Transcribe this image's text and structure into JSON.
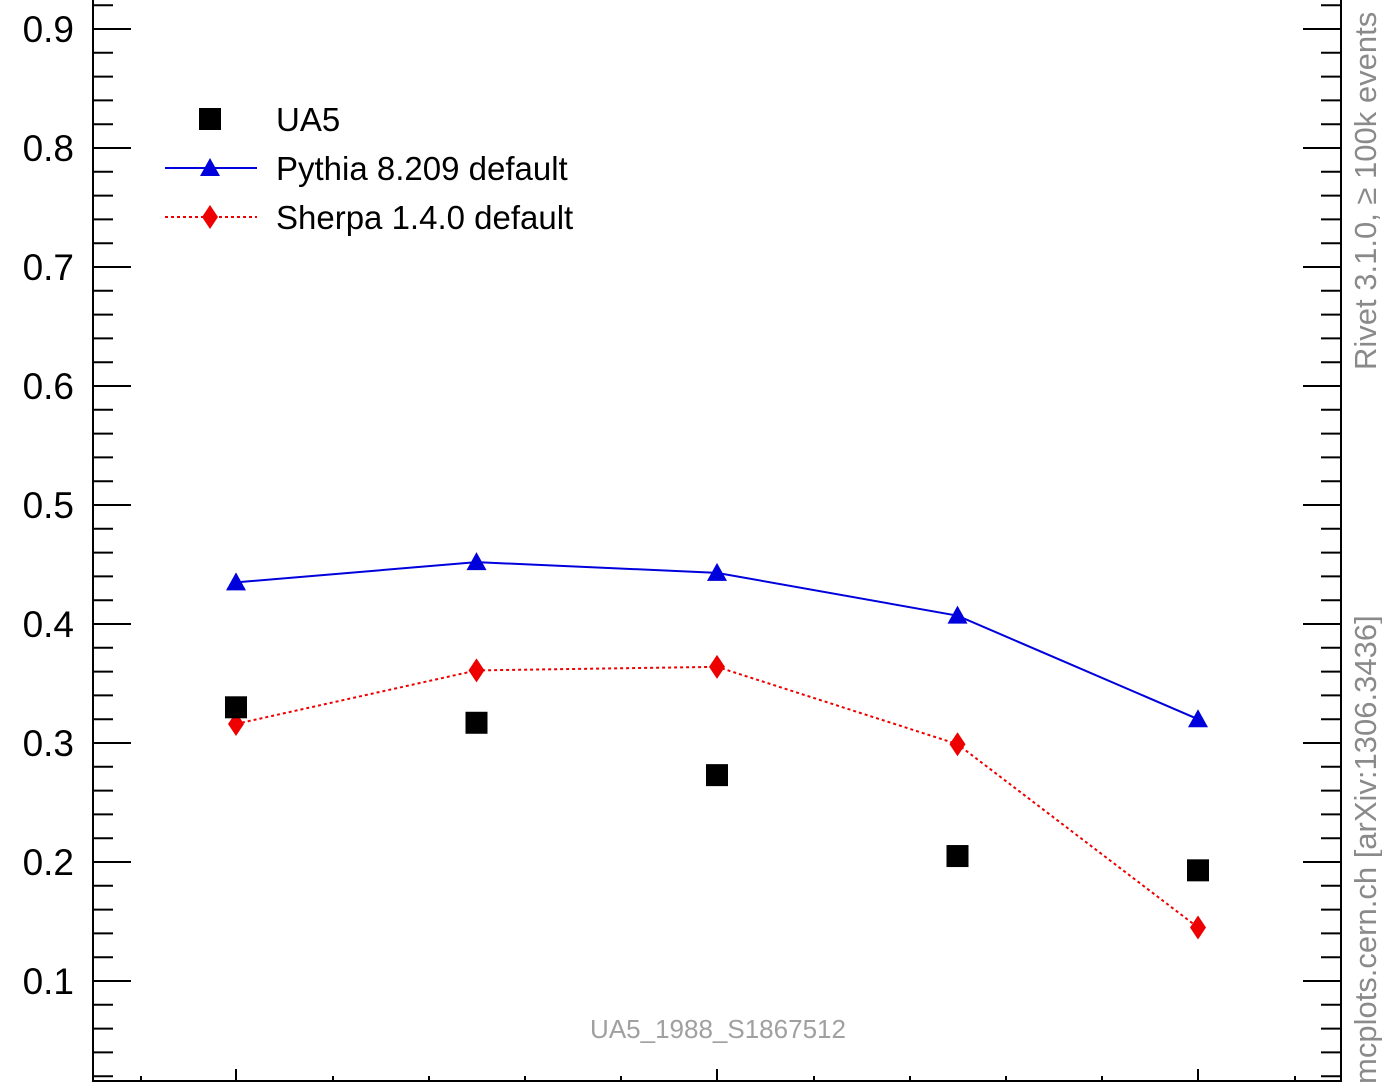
{
  "chart_data": {
    "type": "scatter",
    "title": "",
    "xlabel": "",
    "ylabel": "",
    "ylim": [
      0.0,
      0.93
    ],
    "y_ticks": [
      "0.1",
      "0.2",
      "0.3",
      "0.4",
      "0.5",
      "0.6",
      "0.7",
      "0.8",
      "0.9"
    ],
    "y_tick_values": [
      0.1,
      0.2,
      0.3,
      0.4,
      0.5,
      0.6,
      0.7,
      0.8,
      0.9
    ],
    "x": [
      1,
      2,
      3,
      4,
      5
    ],
    "series": [
      {
        "name": "UA5",
        "style": "markers",
        "marker": "square",
        "color": "#000000",
        "values": [
          0.33,
          0.317,
          0.273,
          0.205,
          0.193
        ]
      },
      {
        "name": "Pythia 8.209 default",
        "style": "solid-line",
        "marker": "triangle",
        "color": "#0000dd",
        "values": [
          0.435,
          0.452,
          0.443,
          0.407,
          0.32
        ]
      },
      {
        "name": "Sherpa 1.4.0 default",
        "style": "dotted-line",
        "marker": "diamond",
        "color": "#ee0000",
        "values": [
          0.316,
          0.361,
          0.364,
          0.299,
          0.145
        ]
      }
    ],
    "legend_position": "top-left",
    "grid": false,
    "watermark": "UA5_1988_S1867512",
    "side_labels": {
      "top": "Rivet 3.1.0, ≥ 100k events",
      "bottom": "mcplots.cern.ch [arXiv:1306.3436]"
    }
  }
}
